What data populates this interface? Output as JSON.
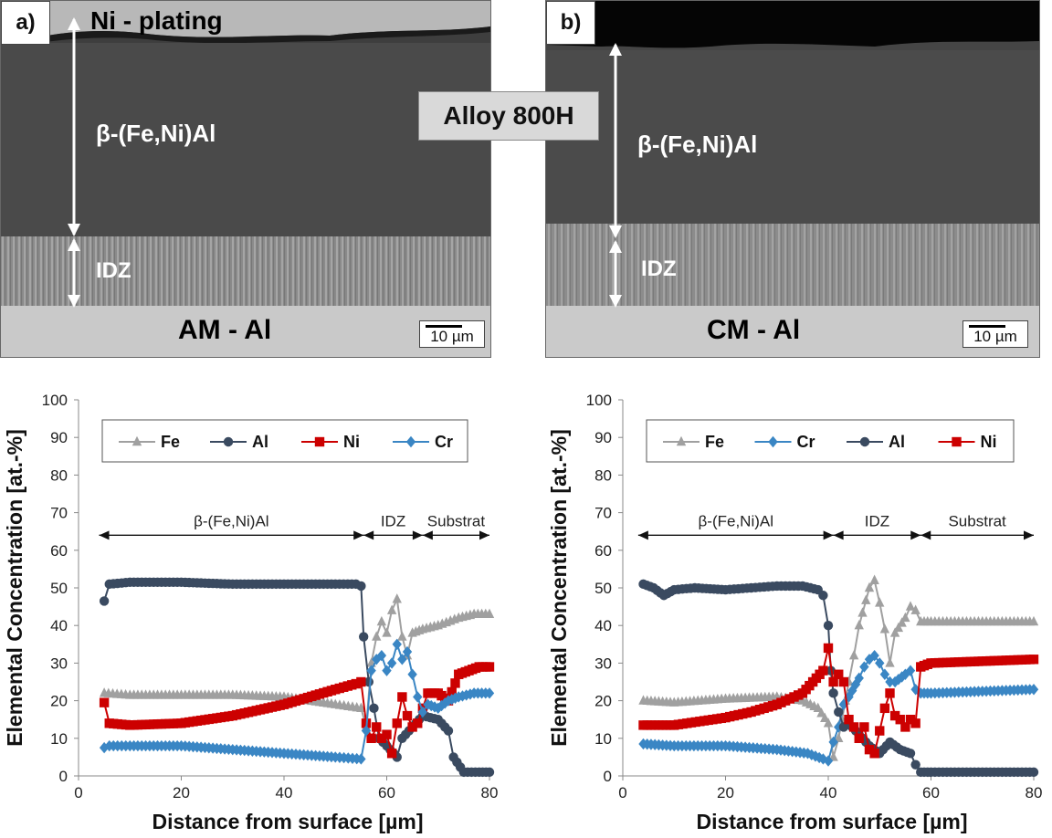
{
  "figure": {
    "alloy_label": "Alloy 800H",
    "panels": [
      {
        "tag": "a)",
        "plating_label": "Ni - plating",
        "beta_label": "β-(Fe,Ni)Al",
        "idz_label": "IDZ",
        "process_label": "AM - Al",
        "scale_label": "10 µm"
      },
      {
        "tag": "b)",
        "beta_label": "β-(Fe,Ni)Al",
        "idz_label": "IDZ",
        "process_label": "CM - Al",
        "scale_label": "10 µm"
      }
    ]
  },
  "chart_data": [
    {
      "type": "line",
      "xlabel": "Distance from surface [µm]",
      "ylabel": "Elemental Concentration [at.-%]",
      "xlim": [
        0,
        80
      ],
      "ylim": [
        0,
        100
      ],
      "xticks": [
        0,
        20,
        40,
        60,
        80
      ],
      "yticks": [
        0,
        10,
        20,
        30,
        40,
        50,
        60,
        70,
        80,
        90,
        100
      ],
      "legend_placement": "top",
      "zones": [
        {
          "label": "β-(Fe,Ni)Al",
          "from": 4,
          "to": 55.5
        },
        {
          "label": "IDZ",
          "from": 55.5,
          "to": 67
        },
        {
          "label": "Substrat",
          "from": 67,
          "to": 80
        }
      ],
      "zone_y": 64,
      "series": [
        {
          "name": "Fe",
          "color": "#a0a0a0",
          "marker": "triangle",
          "points": [
            [
              5,
              22
            ],
            [
              10,
              21.5
            ],
            [
              20,
              21.5
            ],
            [
              30,
              21.5
            ],
            [
              40,
              21
            ],
            [
              50,
              19
            ],
            [
              55,
              18
            ],
            [
              56,
              13
            ],
            [
              57,
              30
            ],
            [
              58,
              37
            ],
            [
              59,
              41
            ],
            [
              60,
              38
            ],
            [
              61,
              44
            ],
            [
              62,
              47
            ],
            [
              63,
              37
            ],
            [
              64,
              32
            ],
            [
              65,
              38
            ],
            [
              67,
              39
            ],
            [
              70,
              40
            ],
            [
              74,
              42
            ],
            [
              77,
              43
            ],
            [
              80,
              43
            ]
          ]
        },
        {
          "name": "Al",
          "color": "#3a4a60",
          "marker": "circle",
          "points": [
            [
              5,
              46.5
            ],
            [
              6,
              51
            ],
            [
              10,
              51.5
            ],
            [
              20,
              51.5
            ],
            [
              30,
              51
            ],
            [
              40,
              51
            ],
            [
              50,
              51
            ],
            [
              54,
              51
            ],
            [
              55,
              50.5
            ],
            [
              55.5,
              37
            ],
            [
              56.5,
              25
            ],
            [
              57.5,
              18
            ],
            [
              58.5,
              10
            ],
            [
              60,
              8
            ],
            [
              62,
              5
            ],
            [
              63,
              10
            ],
            [
              65,
              13
            ],
            [
              67,
              16
            ],
            [
              70,
              15
            ],
            [
              72,
              12
            ],
            [
              73,
              5
            ],
            [
              75,
              1
            ],
            [
              78,
              1
            ],
            [
              80,
              1
            ]
          ]
        },
        {
          "name": "Ni",
          "color": "#cc0000",
          "marker": "square",
          "points": [
            [
              5,
              19.5
            ],
            [
              6,
              14
            ],
            [
              10,
              13.5
            ],
            [
              20,
              14
            ],
            [
              30,
              16
            ],
            [
              40,
              19
            ],
            [
              50,
              23
            ],
            [
              54,
              24.5
            ],
            [
              55,
              25
            ],
            [
              56,
              14
            ],
            [
              57,
              10
            ],
            [
              58,
              13
            ],
            [
              59,
              10
            ],
            [
              60,
              11
            ],
            [
              61,
              6
            ],
            [
              62,
              14
            ],
            [
              63,
              21
            ],
            [
              64,
              16
            ],
            [
              65,
              13
            ],
            [
              66,
              14
            ],
            [
              67,
              18
            ],
            [
              68,
              22
            ],
            [
              70,
              22
            ],
            [
              72,
              20
            ],
            [
              74,
              27
            ],
            [
              76,
              28
            ],
            [
              78,
              29
            ],
            [
              80,
              29
            ]
          ]
        },
        {
          "name": "Cr",
          "color": "#3a86c4",
          "marker": "diamond",
          "points": [
            [
              5,
              7.5
            ],
            [
              6,
              8
            ],
            [
              10,
              8
            ],
            [
              20,
              8
            ],
            [
              30,
              7
            ],
            [
              40,
              6
            ],
            [
              50,
              5
            ],
            [
              55,
              4.5
            ],
            [
              56,
              12
            ],
            [
              57,
              28
            ],
            [
              58,
              31
            ],
            [
              59,
              32
            ],
            [
              60,
              28
            ],
            [
              61,
              30
            ],
            [
              62,
              35
            ],
            [
              63,
              31
            ],
            [
              64,
              33
            ],
            [
              65,
              27
            ],
            [
              66,
              21
            ],
            [
              67,
              17
            ],
            [
              68,
              19
            ],
            [
              70,
              18
            ],
            [
              72,
              20
            ],
            [
              74,
              21
            ],
            [
              77,
              22
            ],
            [
              80,
              22
            ]
          ]
        }
      ]
    },
    {
      "type": "line",
      "xlabel": "Distance from surface [µm]",
      "ylabel": "Elemental Concentration [at.-%]",
      "xlim": [
        0,
        80
      ],
      "ylim": [
        0,
        100
      ],
      "xticks": [
        0,
        20,
        40,
        60,
        80
      ],
      "yticks": [
        0,
        10,
        20,
        30,
        40,
        50,
        60,
        70,
        80,
        90,
        100
      ],
      "legend_placement": "top",
      "zones": [
        {
          "label": "β-(Fe,Ni)Al",
          "from": 3,
          "to": 41
        },
        {
          "label": "IDZ",
          "from": 41,
          "to": 58
        },
        {
          "label": "Substrat",
          "from": 58,
          "to": 80
        }
      ],
      "zone_y": 64,
      "series": [
        {
          "name": "Fe",
          "color": "#a0a0a0",
          "marker": "triangle",
          "points": [
            [
              4,
              20
            ],
            [
              10,
              19.5
            ],
            [
              20,
              20.5
            ],
            [
              30,
              21
            ],
            [
              35,
              20
            ],
            [
              38,
              18
            ],
            [
              40,
              14
            ],
            [
              41,
              5
            ],
            [
              42,
              10
            ],
            [
              44,
              25
            ],
            [
              45,
              32
            ],
            [
              46,
              40
            ],
            [
              48,
              50
            ],
            [
              49,
              52
            ],
            [
              50,
              46
            ],
            [
              51,
              39
            ],
            [
              52,
              30
            ],
            [
              53,
              38
            ],
            [
              55,
              42
            ],
            [
              56,
              45
            ],
            [
              57,
              44
            ],
            [
              58,
              41
            ],
            [
              60,
              41
            ],
            [
              70,
              41
            ],
            [
              80,
              41
            ]
          ]
        },
        {
          "name": "Cr",
          "color": "#3a86c4",
          "marker": "diamond",
          "points": [
            [
              4,
              8.5
            ],
            [
              10,
              8
            ],
            [
              20,
              8
            ],
            [
              30,
              7
            ],
            [
              36,
              6
            ],
            [
              39,
              4.5
            ],
            [
              40,
              4
            ],
            [
              41,
              9
            ],
            [
              42,
              13
            ],
            [
              43,
              19
            ],
            [
              44,
              21
            ],
            [
              46,
              26
            ],
            [
              47,
              29
            ],
            [
              48,
              31
            ],
            [
              49,
              32
            ],
            [
              50,
              30
            ],
            [
              51,
              27
            ],
            [
              52,
              25
            ],
            [
              53,
              25
            ],
            [
              55,
              27
            ],
            [
              56,
              28
            ],
            [
              57,
              23
            ],
            [
              58,
              22
            ],
            [
              60,
              22
            ],
            [
              70,
              22.5
            ],
            [
              80,
              23
            ]
          ]
        },
        {
          "name": "Al",
          "color": "#3a4a60",
          "marker": "circle",
          "points": [
            [
              4,
              51
            ],
            [
              6,
              50
            ],
            [
              8,
              48
            ],
            [
              10,
              49.5
            ],
            [
              14,
              50
            ],
            [
              20,
              49.5
            ],
            [
              25,
              50
            ],
            [
              30,
              50.5
            ],
            [
              35,
              50.5
            ],
            [
              38,
              49.5
            ],
            [
              39,
              48
            ],
            [
              40,
              40
            ],
            [
              40.5,
              28
            ],
            [
              41,
              22
            ],
            [
              42,
              17
            ],
            [
              43,
              13
            ],
            [
              44,
              14
            ],
            [
              46,
              11
            ],
            [
              48,
              8
            ],
            [
              50,
              6
            ],
            [
              52,
              9
            ],
            [
              54,
              7
            ],
            [
              56,
              6
            ],
            [
              57,
              3
            ],
            [
              58,
              1
            ],
            [
              60,
              1
            ],
            [
              70,
              1
            ],
            [
              80,
              1
            ]
          ]
        },
        {
          "name": "Ni",
          "color": "#cc0000",
          "marker": "square",
          "points": [
            [
              4,
              13.5
            ],
            [
              10,
              13.5
            ],
            [
              15,
              14.5
            ],
            [
              20,
              15.5
            ],
            [
              25,
              17
            ],
            [
              30,
              19
            ],
            [
              35,
              22
            ],
            [
              37,
              25
            ],
            [
              39,
              28
            ],
            [
              40,
              34
            ],
            [
              41,
              25
            ],
            [
              42,
              27
            ],
            [
              43,
              25
            ],
            [
              44,
              15
            ],
            [
              45,
              13
            ],
            [
              46,
              10
            ],
            [
              47,
              13
            ],
            [
              48,
              7
            ],
            [
              49,
              6
            ],
            [
              50,
              12
            ],
            [
              51,
              18
            ],
            [
              52,
              22
            ],
            [
              53,
              16
            ],
            [
              54,
              15
            ],
            [
              55,
              13
            ],
            [
              56,
              15
            ],
            [
              57,
              14
            ],
            [
              58,
              29
            ],
            [
              60,
              30
            ],
            [
              70,
              30.5
            ],
            [
              80,
              31
            ]
          ]
        }
      ]
    }
  ]
}
